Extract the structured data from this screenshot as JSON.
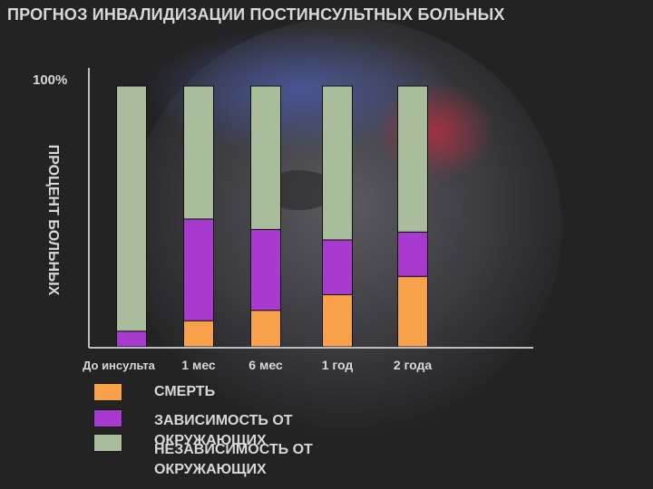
{
  "title": "ПРОГНОЗ ИНВАЛИДИЗАЦИИ ПОСТИНСУЛЬТНЫХ БОЛЬНЫХ",
  "chart_data": {
    "type": "bar",
    "stacked": true,
    "title": "ПРОГНОЗ ИНВАЛИДИЗАЦИИ ПОСТИНСУЛЬТНЫХ БОЛЬНЫХ",
    "xlabel": "",
    "ylabel": "ПРОЦЕНТ БОЛЬНЫХ",
    "ytick_top": "100%",
    "ylim": [
      0,
      100
    ],
    "grid": false,
    "legend_position": "bottom",
    "categories": [
      "До инсульта",
      "1 мес",
      "6 мес",
      "1 год",
      "2 года"
    ],
    "series": [
      {
        "name": "СМЕРТЬ",
        "color": "#f7a24a",
        "values": [
          0,
          10,
          14,
          20,
          27
        ]
      },
      {
        "name": "ЗАВИСИМОСТЬ ОТ ОКРУЖАЮЩИХ",
        "color": "#a83ad0",
        "values": [
          6,
          39,
          31,
          21,
          17
        ]
      },
      {
        "name": "НЕЗАВИСИМОСТЬ ОТ ОКРУЖАЮЩИХ",
        "color": "#a9bc9c",
        "values": [
          94,
          51,
          55,
          59,
          56
        ]
      }
    ]
  }
}
